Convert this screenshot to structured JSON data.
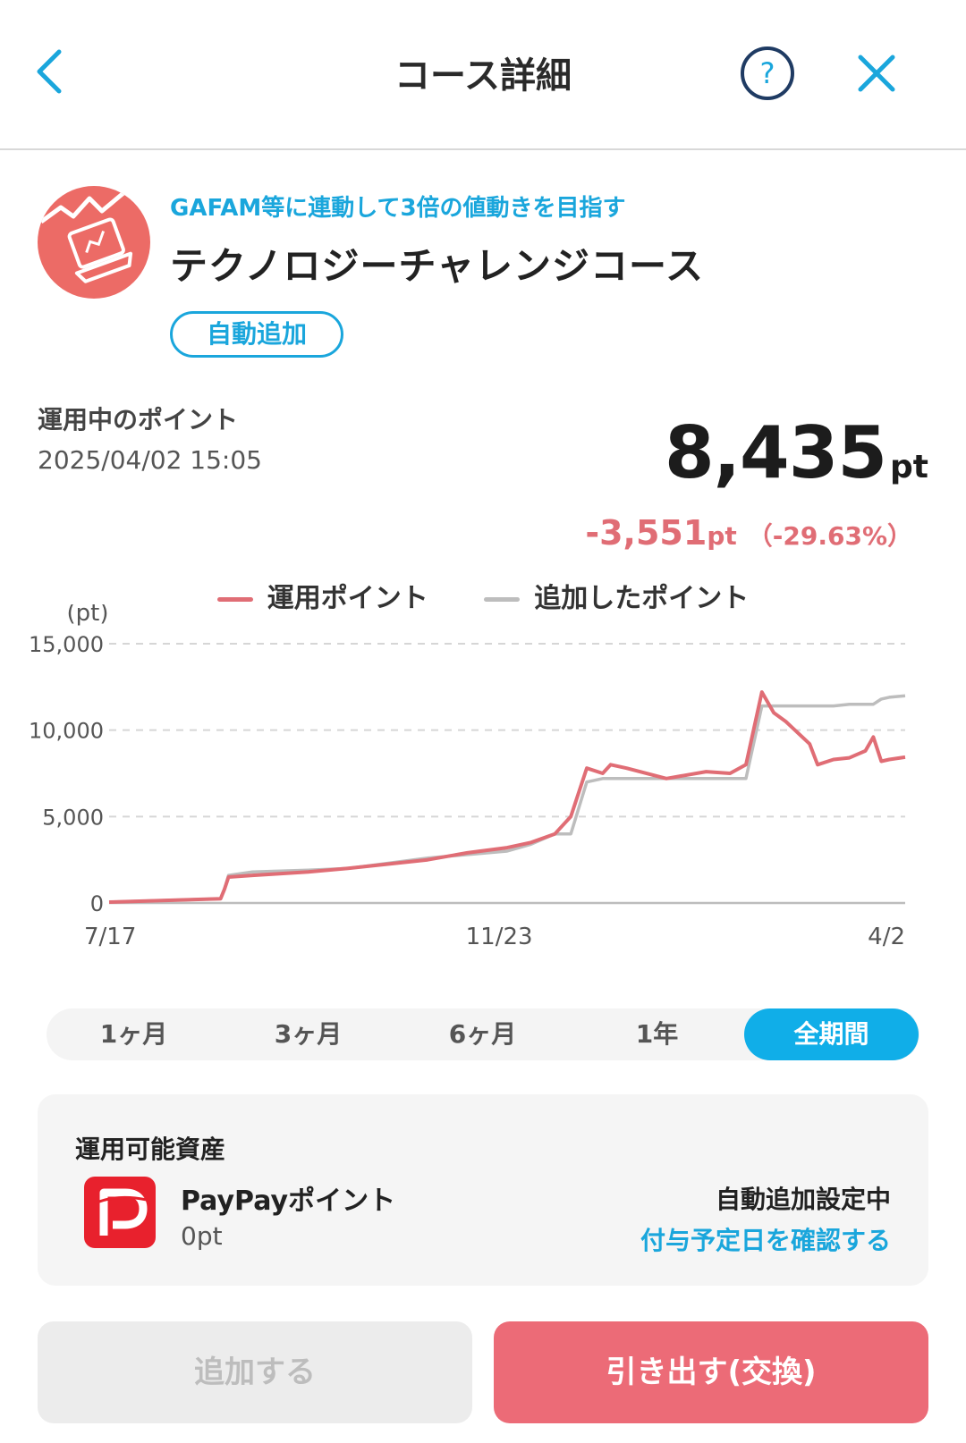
{
  "header": {
    "title": "コース詳細",
    "icons": {
      "back": "chevron-left-icon",
      "help": "help-icon",
      "close": "close-icon"
    },
    "help_glyph": "?"
  },
  "course": {
    "tagline": "GAFAM等に連動して3倍の値動きを目指す",
    "name": "テクノロジーチャレンジコース",
    "badge": "自動追加",
    "icon": "laptop-chart-icon"
  },
  "points": {
    "label": "運用中のポイント",
    "timestamp": "2025/04/02 15:05",
    "value": "8,435",
    "unit": "pt",
    "change": "-3,551",
    "change_unit": "pt",
    "change_pct": "（-29.63%）"
  },
  "chart_data": {
    "type": "line",
    "ylabel": "(pt)",
    "ylim": [
      0,
      15000
    ],
    "yticks": [
      "0",
      "5,000",
      "10,000",
      "15,000"
    ],
    "xtick_labels": [
      "7/17",
      "11/23",
      "4/2"
    ],
    "grid": true,
    "series": [
      {
        "name": "運用ポイント",
        "color": "#e06d75",
        "x": [
          0,
          14,
          14.5,
          15,
          18,
          25,
          30,
          40,
          45,
          50,
          53,
          56,
          58,
          60,
          62,
          63,
          65,
          70,
          75,
          78,
          80,
          82,
          83.5,
          85,
          88,
          89,
          91,
          93,
          94,
          95,
          96,
          97,
          98,
          100
        ],
        "values": [
          50,
          250,
          800,
          1500,
          1600,
          1800,
          2000,
          2500,
          2900,
          3200,
          3500,
          4000,
          5000,
          7800,
          7500,
          8000,
          7800,
          7200,
          7600,
          7500,
          8000,
          12200,
          11000,
          10500,
          9200,
          8000,
          8300,
          8400,
          8600,
          8800,
          9600,
          8200,
          8300,
          8435
        ]
      },
      {
        "name": "追加したポイント",
        "color": "#bdbdbd",
        "x": [
          0,
          14,
          14.5,
          15,
          18,
          25,
          30,
          40,
          45,
          50,
          53,
          56,
          58,
          60,
          62,
          63,
          65,
          70,
          75,
          78,
          80,
          82,
          83.5,
          85,
          88,
          89,
          91,
          93,
          94,
          95,
          96,
          97,
          98,
          100
        ],
        "values": [
          50,
          250,
          800,
          1600,
          1800,
          1900,
          2000,
          2600,
          2800,
          3000,
          3400,
          4000,
          4000,
          7000,
          7200,
          7200,
          7200,
          7200,
          7200,
          7200,
          7200,
          11400,
          11400,
          11400,
          11400,
          11400,
          11400,
          11500,
          11500,
          11500,
          11500,
          11800,
          11900,
          11986
        ]
      }
    ]
  },
  "periods": [
    {
      "label": "1ヶ月",
      "active": false
    },
    {
      "label": "3ヶ月",
      "active": false
    },
    {
      "label": "6ヶ月",
      "active": false
    },
    {
      "label": "1年",
      "active": false
    },
    {
      "label": "全期間",
      "active": true
    }
  ],
  "assets": {
    "title": "運用可能資産",
    "name": "PayPayポイント",
    "points": "0pt",
    "auto_status": "自動追加設定中",
    "link": "付与予定日を確認する",
    "icon": "paypay-icon"
  },
  "actions": {
    "add": "追加する",
    "withdraw": "引き出す(交換)"
  },
  "colors": {
    "accent": "#1aa6dc",
    "positive_red": "#e06d75",
    "withdraw_bg": "#ec6b77",
    "course_icon_bg": "#ec6b66",
    "paypay_red": "#e8212d"
  }
}
